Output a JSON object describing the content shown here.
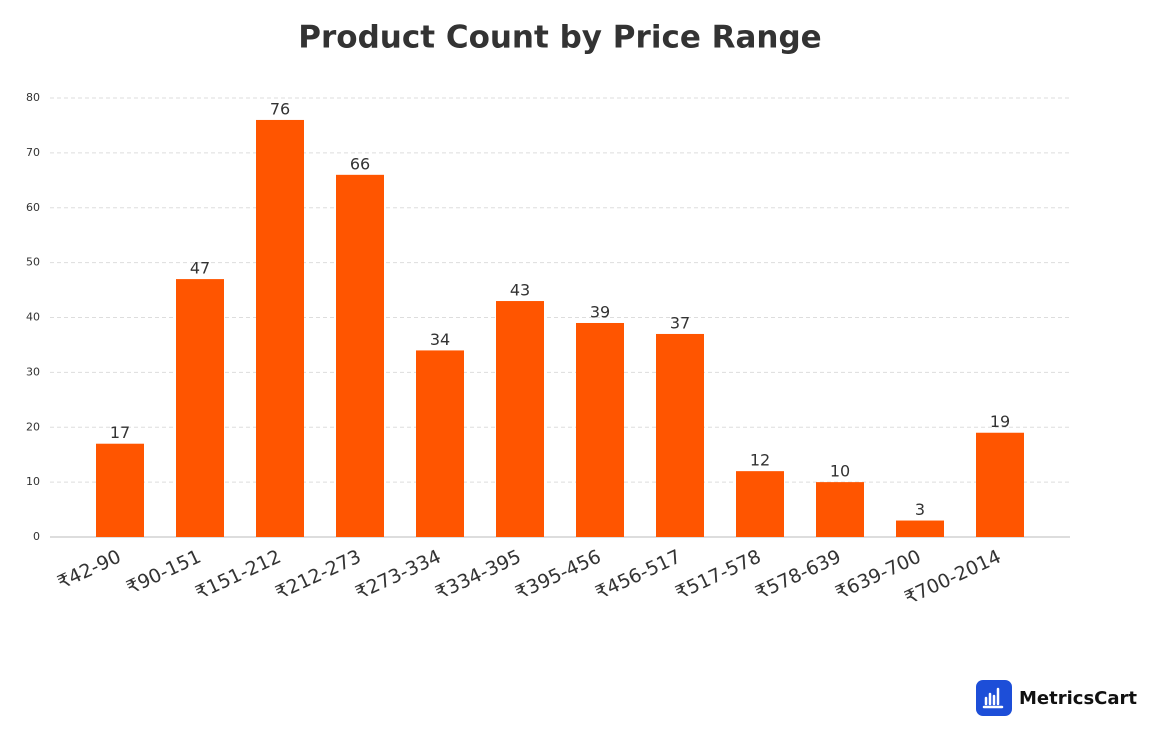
{
  "chart_data": {
    "type": "bar",
    "title": "Product Count by Price Range",
    "categories": [
      "₹42-90",
      "₹90-151",
      "₹151-212",
      "₹212-273",
      "₹273-334",
      "₹334-395",
      "₹395-456",
      "₹456-517",
      "₹517-578",
      "₹578-639",
      "₹639-700",
      "₹700-2014"
    ],
    "values": [
      17,
      47,
      76,
      66,
      34,
      43,
      39,
      37,
      12,
      10,
      3,
      19
    ],
    "color": "#ff5500",
    "ylim": [
      0,
      80
    ],
    "yticks": [
      0,
      10,
      20,
      30,
      40,
      50,
      60,
      70,
      80
    ],
    "grid": true
  },
  "logo_text": "MetricsCart"
}
